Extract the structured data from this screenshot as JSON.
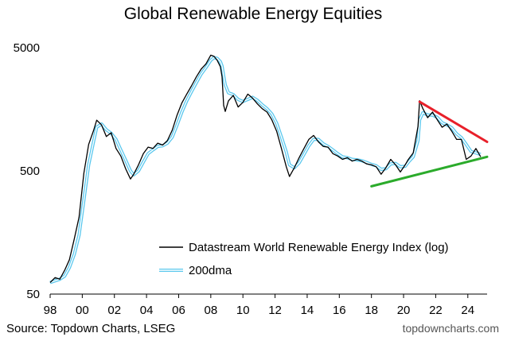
{
  "chart_data": {
    "type": "line",
    "title": "Global Renewable Energy Equities",
    "xlabel": "",
    "ylabel": "",
    "yscale": "log",
    "xlim": [
      1998,
      2025.2
    ],
    "ylim": [
      50,
      5000
    ],
    "x_tick_labels": [
      "98",
      "00",
      "02",
      "04",
      "06",
      "08",
      "10",
      "12",
      "14",
      "16",
      "18",
      "20",
      "22",
      "24"
    ],
    "x_tick_values": [
      1998,
      2000,
      2002,
      2004,
      2006,
      2008,
      2010,
      2012,
      2014,
      2016,
      2018,
      2020,
      2022,
      2024
    ],
    "y_tick_labels": [
      "5000",
      "500",
      "50"
    ],
    "y_tick_values": [
      5000,
      500,
      50
    ],
    "grid": false,
    "legend": "lower-center",
    "series": [
      {
        "name": "Datastream World Renewable Energy Index (log)",
        "color": "#000000",
        "x": [
          1998.0,
          1998.3,
          1998.6,
          1998.9,
          1999.2,
          1999.5,
          1999.8,
          2000.1,
          2000.4,
          2000.7,
          2000.9,
          2001.2,
          2001.5,
          2001.8,
          2002.1,
          2002.4,
          2002.7,
          2003.0,
          2003.2,
          2003.5,
          2003.8,
          2004.1,
          2004.4,
          2004.7,
          2005.0,
          2005.3,
          2005.6,
          2005.9,
          2006.2,
          2006.5,
          2006.8,
          2007.1,
          2007.4,
          2007.7,
          2008.0,
          2008.2,
          2008.4,
          2008.6,
          2008.7,
          2008.8,
          2008.9,
          2009.1,
          2009.4,
          2009.7,
          2010.0,
          2010.3,
          2010.6,
          2010.9,
          2011.2,
          2011.5,
          2011.8,
          2012.1,
          2012.4,
          2012.7,
          2012.9,
          2013.2,
          2013.5,
          2013.8,
          2014.1,
          2014.4,
          2014.7,
          2015.0,
          2015.3,
          2015.6,
          2015.9,
          2016.2,
          2016.5,
          2016.8,
          2017.1,
          2017.4,
          2017.7,
          2018.0,
          2018.3,
          2018.6,
          2018.9,
          2019.2,
          2019.5,
          2019.8,
          2020.1,
          2020.3,
          2020.6,
          2020.9,
          2021.0,
          2021.2,
          2021.5,
          2021.8,
          2022.1,
          2022.4,
          2022.7,
          2023.0,
          2023.3,
          2023.6,
          2023.9,
          2024.2,
          2024.5,
          2024.8
        ],
        "values": [
          62,
          68,
          66,
          78,
          95,
          140,
          210,
          480,
          820,
          1060,
          1290,
          1180,
          950,
          1020,
          760,
          660,
          520,
          430,
          470,
          560,
          690,
          780,
          760,
          840,
          810,
          880,
          1070,
          1420,
          1780,
          2100,
          2450,
          2900,
          3350,
          3700,
          4350,
          4250,
          3950,
          3500,
          2900,
          1700,
          1520,
          1850,
          2050,
          1650,
          1800,
          2100,
          1950,
          1750,
          1600,
          1500,
          1300,
          1050,
          760,
          540,
          450,
          530,
          640,
          760,
          900,
          970,
          860,
          790,
          780,
          690,
          660,
          620,
          640,
          600,
          620,
          600,
          570,
          560,
          540,
          470,
          530,
          620,
          560,
          490,
          560,
          620,
          700,
          1150,
          1860,
          1600,
          1350,
          1500,
          1300,
          1130,
          1200,
          1050,
          900,
          900,
          620,
          660,
          760,
          650
        ]
      },
      {
        "name": "200dma",
        "color": "#5bc8ee",
        "x": [
          1998.0,
          1998.3,
          1998.6,
          1998.9,
          1999.2,
          1999.5,
          1999.8,
          2000.1,
          2000.4,
          2000.7,
          2000.9,
          2001.2,
          2001.5,
          2001.8,
          2002.1,
          2002.4,
          2002.7,
          2003.0,
          2003.2,
          2003.5,
          2003.8,
          2004.1,
          2004.4,
          2004.7,
          2005.0,
          2005.3,
          2005.6,
          2005.9,
          2006.2,
          2006.5,
          2006.8,
          2007.1,
          2007.4,
          2007.7,
          2008.0,
          2008.2,
          2008.4,
          2008.6,
          2008.7,
          2008.8,
          2008.9,
          2009.1,
          2009.4,
          2009.7,
          2010.0,
          2010.3,
          2010.6,
          2010.9,
          2011.2,
          2011.5,
          2011.8,
          2012.1,
          2012.4,
          2012.7,
          2012.9,
          2013.2,
          2013.5,
          2013.8,
          2014.1,
          2014.4,
          2014.7,
          2015.0,
          2015.3,
          2015.6,
          2015.9,
          2016.2,
          2016.5,
          2016.8,
          2017.1,
          2017.4,
          2017.7,
          2018.0,
          2018.3,
          2018.6,
          2018.9,
          2019.2,
          2019.5,
          2019.8,
          2020.1,
          2020.3,
          2020.6,
          2020.9,
          2021.0,
          2021.2,
          2021.5,
          2021.8,
          2022.1,
          2022.4,
          2022.7,
          2023.0,
          2023.3,
          2023.6,
          2023.9,
          2024.2,
          2024.5,
          2024.8
        ],
        "values": [
          62,
          64,
          66,
          70,
          82,
          105,
          150,
          290,
          560,
          860,
          1130,
          1200,
          1080,
          1010,
          900,
          740,
          610,
          500,
          465,
          500,
          590,
          690,
          740,
          790,
          800,
          840,
          940,
          1180,
          1500,
          1850,
          2200,
          2600,
          3050,
          3450,
          3950,
          4150,
          4100,
          3850,
          3550,
          2950,
          2500,
          2150,
          2080,
          1900,
          1830,
          1900,
          1980,
          1870,
          1720,
          1600,
          1450,
          1220,
          940,
          710,
          560,
          530,
          580,
          680,
          800,
          900,
          900,
          830,
          790,
          740,
          690,
          650,
          640,
          620,
          615,
          605,
          585,
          565,
          550,
          515,
          520,
          570,
          575,
          540,
          545,
          590,
          650,
          880,
          1300,
          1480,
          1420,
          1420,
          1360,
          1230,
          1180,
          1120,
          1000,
          930,
          820,
          720,
          700,
          680
        ]
      }
    ],
    "annotations": [
      {
        "type": "trendline",
        "color": "#e8202a",
        "x": [
          2021.0,
          2025.2
        ],
        "values": [
          1820,
          860
        ]
      },
      {
        "type": "trendline",
        "color": "#2bab2b",
        "x": [
          2018.0,
          2025.2
        ],
        "values": [
          375,
          650
        ]
      }
    ]
  },
  "legend": {
    "items": [
      {
        "label": "Datastream World Renewable Energy Index (log)",
        "color": "#000000"
      },
      {
        "label": "200dma",
        "color": "#5bc8ee"
      }
    ]
  },
  "footer": {
    "source": "Source: Topdown Charts, LSEG",
    "brand": "topdowncharts.com"
  }
}
